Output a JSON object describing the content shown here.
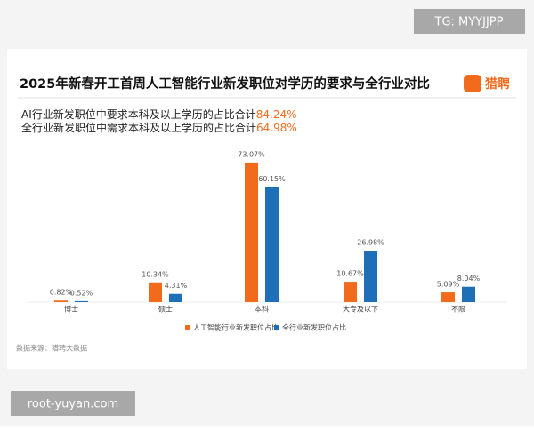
{
  "chart_data": {
    "type": "bar",
    "title": "2025年新春开工首周人工智能行业新发职位对学历的要求与全行业对比",
    "logo": "猎聘",
    "annotations": [
      {
        "text": "AI行业新发职位中要求本科及以上学历的占比合计",
        "highlight": "84.24%"
      },
      {
        "text": "全行业新发职位中需求本科及以上学历的占比合计",
        "highlight": "64.98%"
      }
    ],
    "categories": [
      "博士",
      "硕士",
      "本科",
      "大专及以下",
      "不限"
    ],
    "series": [
      {
        "name": "人工智能行业新发职位占比",
        "color": "#f26b1d",
        "values": [
          0.82,
          10.34,
          73.07,
          10.67,
          5.09
        ],
        "value_labels": [
          "0.82%",
          "10.34%",
          "73.07%",
          "10.67%",
          "5.09%"
        ]
      },
      {
        "name": "全行业新发职位占比",
        "color": "#1f6fb8",
        "values": [
          0.52,
          4.31,
          60.15,
          26.98,
          8.04
        ],
        "value_labels": [
          "0.52%",
          "4.31%",
          "60.15%",
          "26.98%",
          "8.04%"
        ]
      }
    ],
    "source": "数据来源：猎聘大数据",
    "watermarks": [
      "TG: MYYJJPP",
      "root-yuyan.com"
    ]
  }
}
